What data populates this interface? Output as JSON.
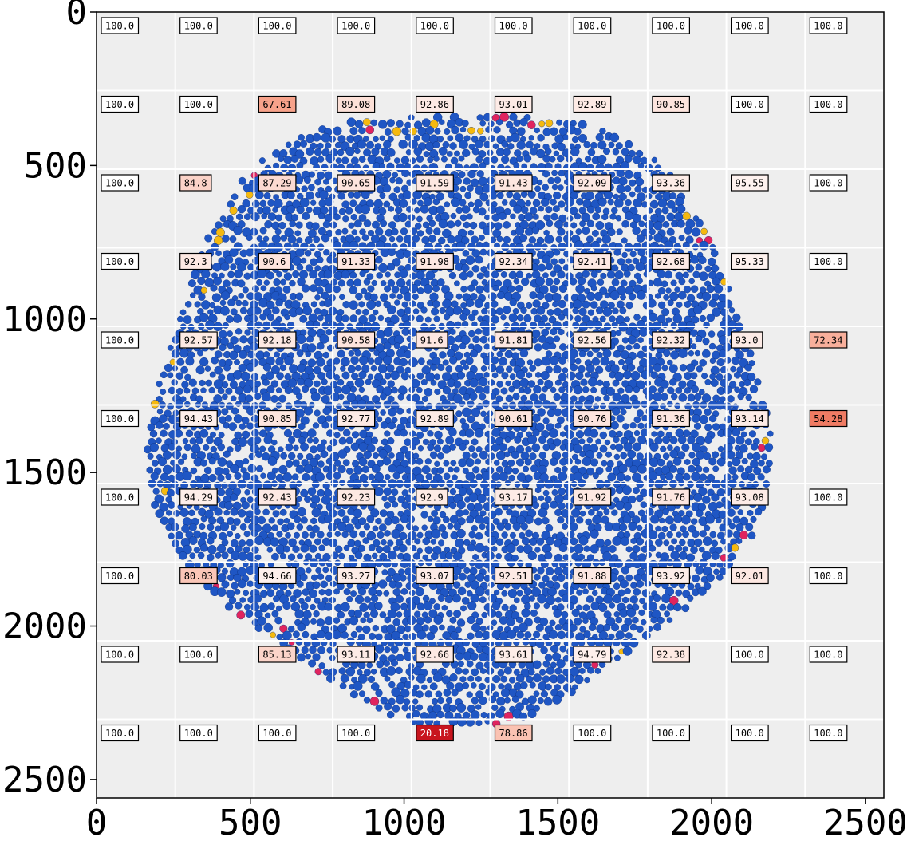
{
  "chart_data": {
    "type": "heatmap",
    "title": "",
    "xlabel": "",
    "ylabel": "",
    "xlim": [
      0,
      2560
    ],
    "ylim": [
      2560,
      0
    ],
    "x_ticks": [
      0,
      500,
      1000,
      1500,
      2000,
      2500
    ],
    "y_ticks": [
      0,
      500,
      1000,
      1500,
      2000,
      2500
    ],
    "grid": true,
    "grid_step": 256,
    "background_image": "circular sample of densely packed blue particles with sparse red and yellow particles near the edge",
    "colors": {
      "particle": "#1f56c4",
      "particle_outline": "#0d2f7a",
      "accent_red": "#e0245e",
      "accent_yellow": "#f5b90f",
      "plot_background": "#eeeeee",
      "grid": "#ffffff",
      "cell_low": "#c8141e",
      "cell_high": "#ffffff"
    },
    "rows": [
      [
        "100.0",
        "100.0",
        "100.0",
        "100.0",
        "100.0",
        "100.0",
        "100.0",
        "100.0",
        "100.0",
        "100.0"
      ],
      [
        "100.0",
        "100.0",
        "67.61",
        "89.08",
        "92.86",
        "93.01",
        "92.89",
        "90.85",
        "100.0",
        "100.0"
      ],
      [
        "100.0",
        "84.8",
        "87.29",
        "90.65",
        "91.59",
        "91.43",
        "92.09",
        "93.36",
        "95.55",
        "100.0"
      ],
      [
        "100.0",
        "92.3",
        "90.6",
        "91.33",
        "91.98",
        "92.34",
        "92.41",
        "92.68",
        "95.33",
        "100.0"
      ],
      [
        "100.0",
        "92.57",
        "92.18",
        "90.58",
        "91.6",
        "91.81",
        "92.56",
        "92.32",
        "93.0",
        "72.34"
      ],
      [
        "100.0",
        "94.43",
        "90.85",
        "92.77",
        "92.89",
        "90.61",
        "90.76",
        "91.36",
        "93.14",
        "54.28"
      ],
      [
        "100.0",
        "94.29",
        "92.43",
        "92.23",
        "92.9",
        "93.17",
        "91.92",
        "91.76",
        "93.08",
        "100.0"
      ],
      [
        "100.0",
        "80.03",
        "94.66",
        "93.27",
        "93.07",
        "92.51",
        "91.88",
        "93.92",
        "92.01",
        "100.0"
      ],
      [
        "100.0",
        "100.0",
        "85.13",
        "93.11",
        "92.66",
        "93.61",
        "94.79",
        "92.38",
        "100.0",
        "100.0"
      ],
      [
        "100.0",
        "100.0",
        "100.0",
        "100.0",
        "20.18",
        "78.86",
        "100.0",
        "100.0",
        "100.0",
        "100.0"
      ]
    ]
  }
}
